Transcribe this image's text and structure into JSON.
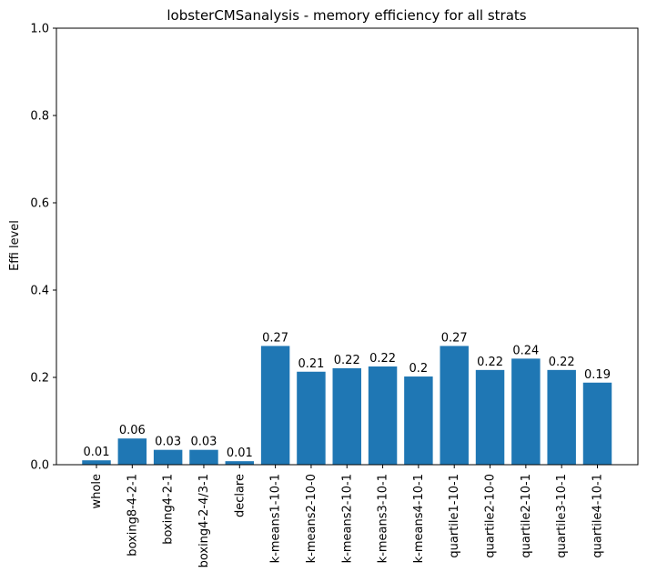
{
  "chart_data": {
    "type": "bar",
    "title": "lobsterCMSanalysis - memory efficiency for all strats",
    "xlabel": "",
    "ylabel": "Effi level",
    "ylim": [
      0,
      1.0
    ],
    "yticks": [
      "0.0",
      "0.2",
      "0.4",
      "0.6",
      "0.8",
      "1.0"
    ],
    "grid": false,
    "bar_color": "#1f77b4",
    "categories": [
      "whole",
      "boxing8-4-2-1",
      "boxing4-2-1",
      "boxing4-2-4/3-1",
      "declare",
      "k-means1-10-1",
      "k-means2-10-0",
      "k-means2-10-1",
      "k-means3-10-1",
      "k-means4-10-1",
      "quartile1-10-1",
      "quartile2-10-0",
      "quartile2-10-1",
      "quartile3-10-1",
      "quartile4-10-1"
    ],
    "values": [
      0.01,
      0.06,
      0.034,
      0.034,
      0.008,
      0.272,
      0.213,
      0.221,
      0.225,
      0.202,
      0.272,
      0.217,
      0.243,
      0.217,
      0.188
    ],
    "data_labels": [
      "0.01",
      "0.06",
      "0.03",
      "0.03",
      "0.01",
      "0.27",
      "0.21",
      "0.22",
      "0.22",
      "0.2",
      "0.27",
      "0.22",
      "0.24",
      "0.22",
      "0.19"
    ]
  }
}
